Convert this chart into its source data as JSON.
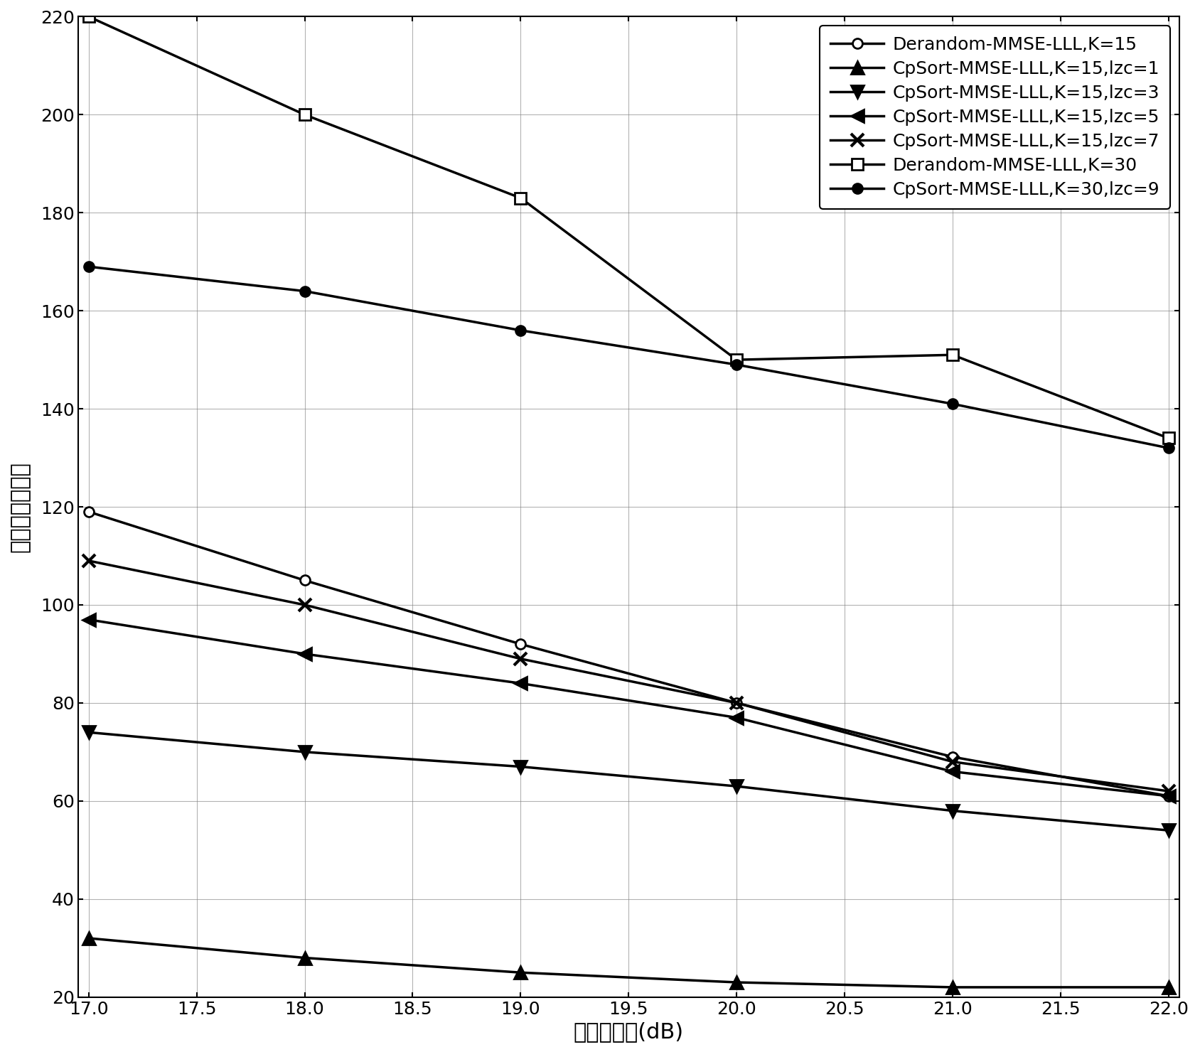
{
  "x": [
    17,
    18,
    19,
    20,
    21,
    22
  ],
  "series": [
    {
      "label": "Derandom-MMSE-LLL,K=15",
      "y": [
        119,
        105,
        92,
        80,
        69,
        61
      ],
      "marker": "o",
      "markersize": 10,
      "linewidth": 2.5,
      "mfc": "white",
      "mec": "black",
      "mew": 2.0
    },
    {
      "label": "CpSort-MMSE-LLL,K=15,lzc=1",
      "y": [
        32,
        28,
        25,
        23,
        22,
        22
      ],
      "marker": "^",
      "markersize": 13,
      "linewidth": 2.5,
      "mfc": "black",
      "mec": "black",
      "mew": 2.0
    },
    {
      "label": "CpSort-MMSE-LLL,K=15,lzc=3",
      "y": [
        74,
        70,
        67,
        63,
        58,
        54
      ],
      "marker": "v",
      "markersize": 13,
      "linewidth": 2.5,
      "mfc": "black",
      "mec": "black",
      "mew": 2.0
    },
    {
      "label": "CpSort-MMSE-LLL,K=15,lzc=5",
      "y": [
        97,
        90,
        84,
        77,
        66,
        61
      ],
      "marker": "<",
      "markersize": 13,
      "linewidth": 2.5,
      "mfc": "black",
      "mec": "black",
      "mew": 2.0
    },
    {
      "label": "CpSort-MMSE-LLL,K=15,lzc=7",
      "y": [
        109,
        100,
        89,
        80,
        68,
        62
      ],
      "marker": "x",
      "markersize": 13,
      "linewidth": 2.5,
      "mfc": "black",
      "mec": "black",
      "mew": 3.0
    },
    {
      "label": "Derandom-MMSE-LLL,K=30",
      "y": [
        220,
        200,
        183,
        150,
        151,
        134
      ],
      "marker": "s",
      "markersize": 11,
      "linewidth": 2.5,
      "mfc": "white",
      "mec": "black",
      "mew": 2.0
    },
    {
      "label": "CpSort-MMSE-LLL,K=30,lzc=9",
      "y": [
        169,
        164,
        156,
        149,
        141,
        132
      ],
      "marker": "o",
      "markersize": 10,
      "linewidth": 2.5,
      "mfc": "black",
      "mec": "black",
      "mew": 2.0
    }
  ],
  "xlabel": "比特信噪比(dB)",
  "ylabel": "平均访问节点数",
  "xlim": [
    17,
    22
  ],
  "ylim": [
    20,
    220
  ],
  "xticks": [
    17,
    17.5,
    18,
    18.5,
    19,
    19.5,
    20,
    20.5,
    21,
    21.5,
    22
  ],
  "yticks": [
    20,
    40,
    60,
    80,
    100,
    120,
    140,
    160,
    180,
    200,
    220
  ],
  "legend_loc": "upper right",
  "font_size": 18,
  "tick_font_size": 18,
  "label_font_size": 22
}
